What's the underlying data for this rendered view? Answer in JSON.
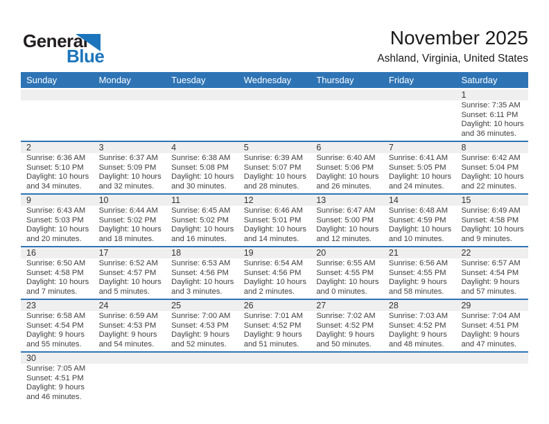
{
  "logo": {
    "general": "General",
    "blue": "Blue"
  },
  "header": {
    "title": "November 2025",
    "subtitle": "Ashland, Virginia, United States"
  },
  "weekday_headers": [
    "Sunday",
    "Monday",
    "Tuesday",
    "Wednesday",
    "Thursday",
    "Friday",
    "Saturday"
  ],
  "colors": {
    "header_bg": "#2E74B5",
    "separator": "#2E74B5",
    "number_band_bg": "#EFEFEF",
    "logo_blue": "#1C75BC",
    "text": "#3E3E3E"
  },
  "weeks": [
    [
      null,
      null,
      null,
      null,
      null,
      null,
      {
        "day": "1",
        "lines": [
          "Sunrise: 7:35 AM",
          "Sunset: 6:11 PM",
          "Daylight: 10 hours",
          "and 36 minutes."
        ]
      }
    ],
    [
      {
        "day": "2",
        "lines": [
          "Sunrise: 6:36 AM",
          "Sunset: 5:10 PM",
          "Daylight: 10 hours",
          "and 34 minutes."
        ]
      },
      {
        "day": "3",
        "lines": [
          "Sunrise: 6:37 AM",
          "Sunset: 5:09 PM",
          "Daylight: 10 hours",
          "and 32 minutes."
        ]
      },
      {
        "day": "4",
        "lines": [
          "Sunrise: 6:38 AM",
          "Sunset: 5:08 PM",
          "Daylight: 10 hours",
          "and 30 minutes."
        ]
      },
      {
        "day": "5",
        "lines": [
          "Sunrise: 6:39 AM",
          "Sunset: 5:07 PM",
          "Daylight: 10 hours",
          "and 28 minutes."
        ]
      },
      {
        "day": "6",
        "lines": [
          "Sunrise: 6:40 AM",
          "Sunset: 5:06 PM",
          "Daylight: 10 hours",
          "and 26 minutes."
        ]
      },
      {
        "day": "7",
        "lines": [
          "Sunrise: 6:41 AM",
          "Sunset: 5:05 PM",
          "Daylight: 10 hours",
          "and 24 minutes."
        ]
      },
      {
        "day": "8",
        "lines": [
          "Sunrise: 6:42 AM",
          "Sunset: 5:04 PM",
          "Daylight: 10 hours",
          "and 22 minutes."
        ]
      }
    ],
    [
      {
        "day": "9",
        "lines": [
          "Sunrise: 6:43 AM",
          "Sunset: 5:03 PM",
          "Daylight: 10 hours",
          "and 20 minutes."
        ]
      },
      {
        "day": "10",
        "lines": [
          "Sunrise: 6:44 AM",
          "Sunset: 5:02 PM",
          "Daylight: 10 hours",
          "and 18 minutes."
        ]
      },
      {
        "day": "11",
        "lines": [
          "Sunrise: 6:45 AM",
          "Sunset: 5:02 PM",
          "Daylight: 10 hours",
          "and 16 minutes."
        ]
      },
      {
        "day": "12",
        "lines": [
          "Sunrise: 6:46 AM",
          "Sunset: 5:01 PM",
          "Daylight: 10 hours",
          "and 14 minutes."
        ]
      },
      {
        "day": "13",
        "lines": [
          "Sunrise: 6:47 AM",
          "Sunset: 5:00 PM",
          "Daylight: 10 hours",
          "and 12 minutes."
        ]
      },
      {
        "day": "14",
        "lines": [
          "Sunrise: 6:48 AM",
          "Sunset: 4:59 PM",
          "Daylight: 10 hours",
          "and 10 minutes."
        ]
      },
      {
        "day": "15",
        "lines": [
          "Sunrise: 6:49 AM",
          "Sunset: 4:58 PM",
          "Daylight: 10 hours",
          "and 9 minutes."
        ]
      }
    ],
    [
      {
        "day": "16",
        "lines": [
          "Sunrise: 6:50 AM",
          "Sunset: 4:58 PM",
          "Daylight: 10 hours",
          "and 7 minutes."
        ]
      },
      {
        "day": "17",
        "lines": [
          "Sunrise: 6:52 AM",
          "Sunset: 4:57 PM",
          "Daylight: 10 hours",
          "and 5 minutes."
        ]
      },
      {
        "day": "18",
        "lines": [
          "Sunrise: 6:53 AM",
          "Sunset: 4:56 PM",
          "Daylight: 10 hours",
          "and 3 minutes."
        ]
      },
      {
        "day": "19",
        "lines": [
          "Sunrise: 6:54 AM",
          "Sunset: 4:56 PM",
          "Daylight: 10 hours",
          "and 2 minutes."
        ]
      },
      {
        "day": "20",
        "lines": [
          "Sunrise: 6:55 AM",
          "Sunset: 4:55 PM",
          "Daylight: 10 hours",
          "and 0 minutes."
        ]
      },
      {
        "day": "21",
        "lines": [
          "Sunrise: 6:56 AM",
          "Sunset: 4:55 PM",
          "Daylight: 9 hours",
          "and 58 minutes."
        ]
      },
      {
        "day": "22",
        "lines": [
          "Sunrise: 6:57 AM",
          "Sunset: 4:54 PM",
          "Daylight: 9 hours",
          "and 57 minutes."
        ]
      }
    ],
    [
      {
        "day": "23",
        "lines": [
          "Sunrise: 6:58 AM",
          "Sunset: 4:54 PM",
          "Daylight: 9 hours",
          "and 55 minutes."
        ]
      },
      {
        "day": "24",
        "lines": [
          "Sunrise: 6:59 AM",
          "Sunset: 4:53 PM",
          "Daylight: 9 hours",
          "and 54 minutes."
        ]
      },
      {
        "day": "25",
        "lines": [
          "Sunrise: 7:00 AM",
          "Sunset: 4:53 PM",
          "Daylight: 9 hours",
          "and 52 minutes."
        ]
      },
      {
        "day": "26",
        "lines": [
          "Sunrise: 7:01 AM",
          "Sunset: 4:52 PM",
          "Daylight: 9 hours",
          "and 51 minutes."
        ]
      },
      {
        "day": "27",
        "lines": [
          "Sunrise: 7:02 AM",
          "Sunset: 4:52 PM",
          "Daylight: 9 hours",
          "and 50 minutes."
        ]
      },
      {
        "day": "28",
        "lines": [
          "Sunrise: 7:03 AM",
          "Sunset: 4:52 PM",
          "Daylight: 9 hours",
          "and 48 minutes."
        ]
      },
      {
        "day": "29",
        "lines": [
          "Sunrise: 7:04 AM",
          "Sunset: 4:51 PM",
          "Daylight: 9 hours",
          "and 47 minutes."
        ]
      }
    ],
    [
      {
        "day": "30",
        "lines": [
          "Sunrise: 7:05 AM",
          "Sunset: 4:51 PM",
          "Daylight: 9 hours",
          "and 46 minutes."
        ]
      },
      null,
      null,
      null,
      null,
      null,
      null
    ]
  ]
}
